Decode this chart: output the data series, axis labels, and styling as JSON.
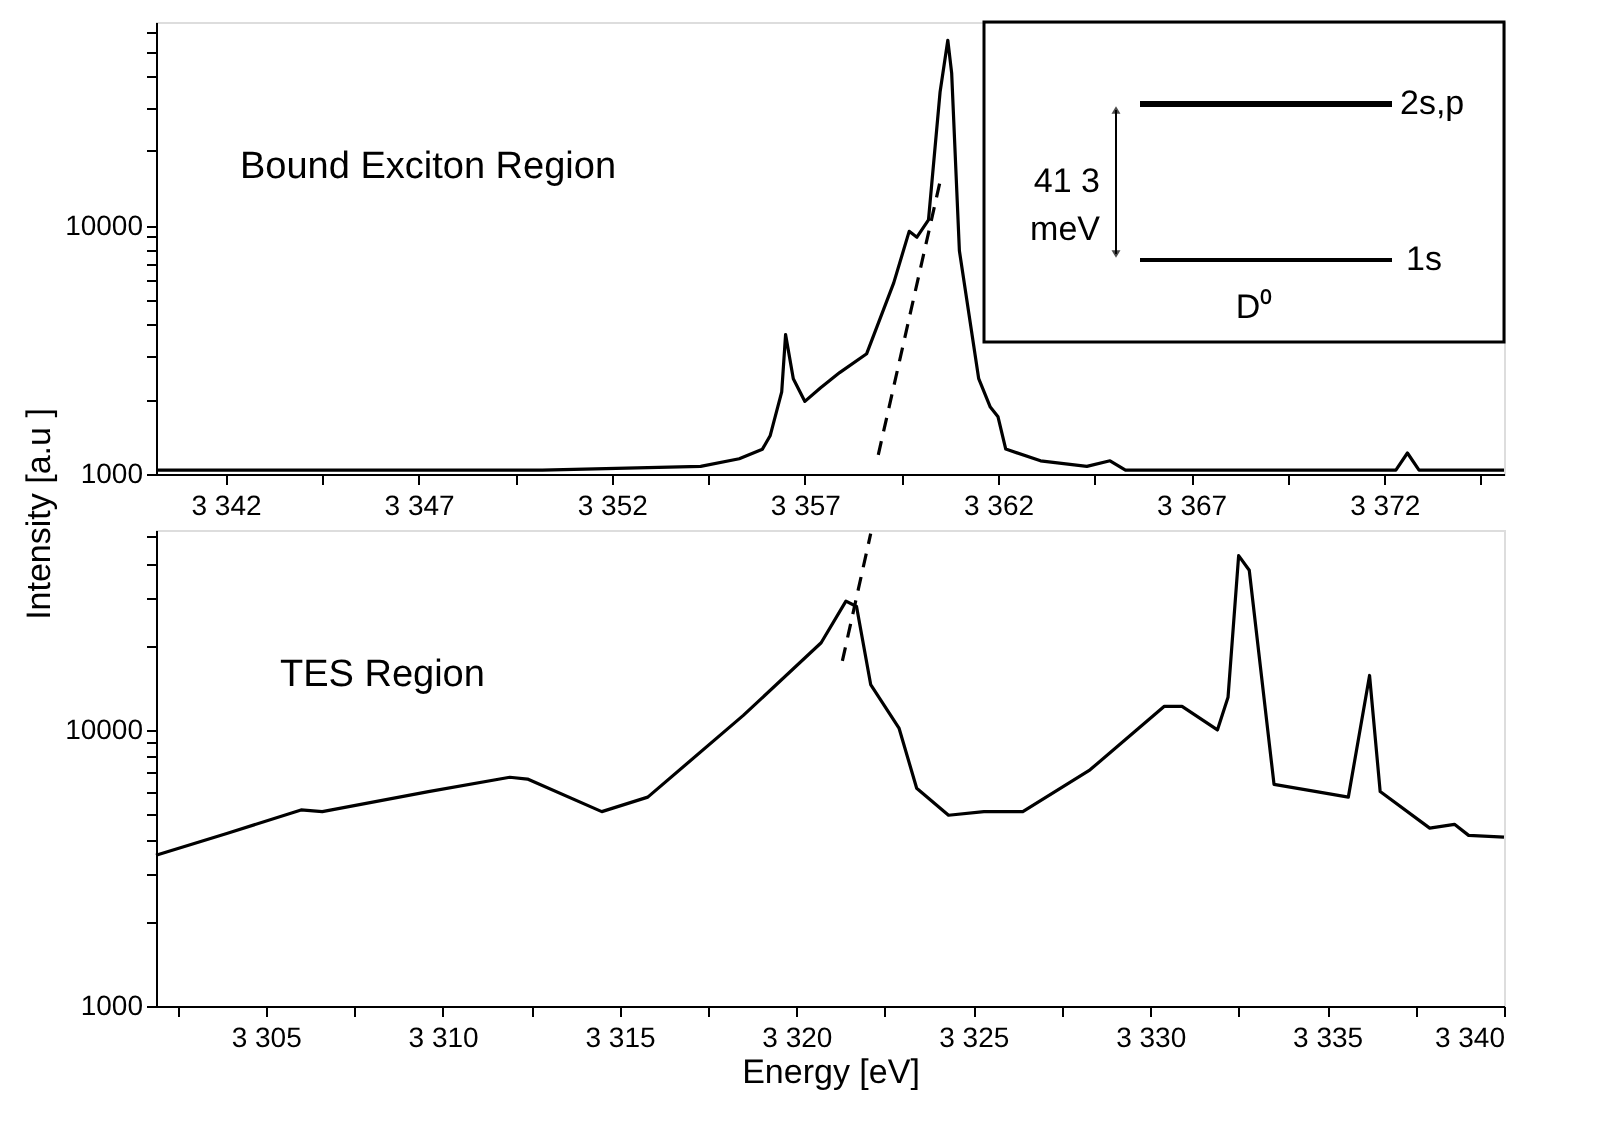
{
  "chart_data": [
    {
      "type": "line",
      "ylabel": "Intensity [a.u ]",
      "log": "y",
      "line_style": "solid",
      "annotations": [
        "Bound Exciton Region",
        "2s,p",
        "1s",
        "41 3 meV",
        "D⁰"
      ],
      "xlim": [
        3340.2,
        3375.1
      ],
      "ylim": [
        1000,
        66000
      ],
      "xticks": [
        {
          "value": 3342,
          "label": "3 342"
        },
        {
          "value": 3344.5,
          "label": null
        },
        {
          "value": 3347,
          "label": "3 347"
        },
        {
          "value": 3349.5,
          "label": null
        },
        {
          "value": 3352,
          "label": "3 352"
        },
        {
          "value": 3354.5,
          "label": null
        },
        {
          "value": 3357,
          "label": "3 357"
        },
        {
          "value": 3359.5,
          "label": null
        },
        {
          "value": 3362,
          "label": "3 362"
        },
        {
          "value": 3364.5,
          "label": null
        },
        {
          "value": 3367,
          "label": "3 367"
        },
        {
          "value": 3369.5,
          "label": null
        },
        {
          "value": 3372,
          "label": "3 372"
        },
        {
          "value": 3374.5,
          "label": null
        }
      ],
      "yticks": [
        1000,
        {
          "value": 2000,
          "label": null
        },
        {
          "value": 3000,
          "label": null
        },
        {
          "value": 4000,
          "label": null
        },
        {
          "value": 5000,
          "label": null
        },
        {
          "value": 6000,
          "label": null
        },
        {
          "value": 7000,
          "label": null
        },
        {
          "value": 8000,
          "label": null
        },
        {
          "value": 9000,
          "label": null
        },
        10000,
        {
          "value": 20000,
          "label": null
        },
        {
          "value": 30000,
          "label": null
        },
        {
          "value": 40000,
          "label": null
        },
        {
          "value": 50000,
          "label": null
        },
        {
          "value": 60000,
          "label": null
        }
      ],
      "series": [
        {
          "color": "#000000",
          "x": [
            3340.2,
            3350.2,
            3354.3,
            3355.3,
            3355.9,
            3356.1,
            3356.4,
            3356.5,
            3356.7,
            3357.0,
            3357.4,
            3357.9,
            3358.6,
            3359.3,
            3359.7,
            3359.9,
            3360.2,
            3360.5,
            3360.7,
            3360.8,
            3361.0,
            3361.5,
            3361.8,
            3362.0,
            3362.2,
            3363.1,
            3364.3,
            3364.9,
            3365.3,
            3372.3,
            3372.6,
            3372.9,
            3375.1
          ],
          "values": [
            1036,
            1036,
            1073,
            1152,
            1259,
            1425,
            2140,
            3640,
            2420,
            1960,
            2220,
            2560,
            3050,
            5880,
            9480,
            8980,
            10550,
            34500,
            55700,
            41100,
            7920,
            2420,
            1860,
            1700,
            1260,
            1130,
            1073,
            1130,
            1036,
            1036,
            1215,
            1036,
            1036
          ]
        },
        {
          "line_style": "dashed",
          "color": "#000000",
          "x": [
            3358.9,
            3360.5
          ],
          "values": [
            1194,
            15030
          ]
        }
      ]
    },
    {
      "type": "line",
      "xlabel": "Energy [eV]",
      "log": "y",
      "line_style": "solid",
      "annotations": [
        "TES Region"
      ],
      "xlim": [
        3301.9,
        3340
      ],
      "ylim": [
        1000,
        53000
      ],
      "xticks": [
        {
          "value": 3302.5,
          "label": null
        },
        {
          "value": 3305,
          "label": "3 305"
        },
        {
          "value": 3307.5,
          "label": null
        },
        {
          "value": 3310,
          "label": "3 310"
        },
        {
          "value": 3312.5,
          "label": null
        },
        {
          "value": 3315,
          "label": "3 315"
        },
        {
          "value": 3317.5,
          "label": null
        },
        {
          "value": 3320,
          "label": "3 320"
        },
        {
          "value": 3322.5,
          "label": null
        },
        {
          "value": 3325,
          "label": "3 325"
        },
        {
          "value": 3327.5,
          "label": null
        },
        {
          "value": 3330,
          "label": "3 330"
        },
        {
          "value": 3332.5,
          "label": null
        },
        {
          "value": 3335,
          "label": "3 335"
        },
        {
          "value": 3337.5,
          "label": null
        },
        {
          "value": 3340,
          "label": "3 340"
        }
      ],
      "yticks": [
        1000,
        {
          "value": 2000,
          "label": null
        },
        {
          "value": 3000,
          "label": null
        },
        {
          "value": 4000,
          "label": null
        },
        {
          "value": 5000,
          "label": null
        },
        {
          "value": 6000,
          "label": null
        },
        {
          "value": 7000,
          "label": null
        },
        {
          "value": 8000,
          "label": null
        },
        {
          "value": 9000,
          "label": null
        },
        10000,
        {
          "value": 20000,
          "label": null
        },
        {
          "value": 30000,
          "label": null
        },
        {
          "value": 40000,
          "label": null
        },
        {
          "value": 50000,
          "label": null
        }
      ],
      "series": [
        {
          "color": "#000000",
          "x": [
            3301.9,
            3303.9,
            3306.0,
            3306.6,
            3309.6,
            3311.9,
            3312.4,
            3314.5,
            3315.8,
            3318.5,
            3320.7,
            3321.4,
            3321.7,
            3322.1,
            3322.9,
            3323.4,
            3324.3,
            3325.3,
            3325.7,
            3326.4,
            3328.3,
            3330.4,
            3330.9,
            3331.9,
            3332.2,
            3332.5,
            3332.8,
            3333.5,
            3334.7,
            3335.6,
            3336.2,
            3336.5,
            3337.9,
            3338.6,
            3339.0,
            3340.0
          ],
          "values": [
            3516,
            4217,
            5130,
            5060,
            5980,
            6740,
            6640,
            5060,
            5710,
            11290,
            20690,
            29300,
            28000,
            14600,
            10160,
            6150,
            4910,
            5060,
            5060,
            5060,
            7170,
            12180,
            12180,
            10000,
            13130,
            42800,
            37900,
            6350,
            5980,
            5710,
            15750,
            5980,
            4410,
            4550,
            4150,
            4090
          ]
        },
        {
          "line_style": "dashed",
          "color": "#000000",
          "x": [
            3321.3,
            3322.1
          ],
          "values": [
            17780,
            51400
          ]
        }
      ]
    }
  ]
}
